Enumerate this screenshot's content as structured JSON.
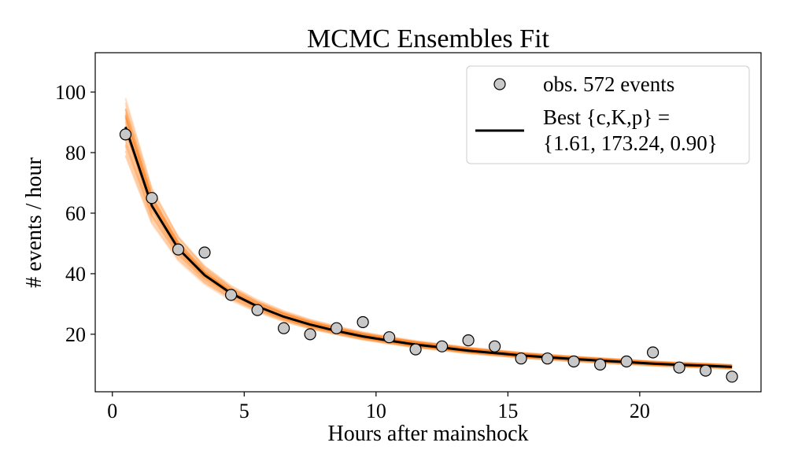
{
  "chart_data": {
    "type": "scatter",
    "title": "MCMC Ensembles Fit",
    "xlabel": "Hours after mainshock",
    "ylabel": "# events / hour",
    "xlim": [
      -0.65,
      24.6
    ],
    "ylim": [
      1,
      113
    ],
    "x_ticks": [
      0,
      5,
      10,
      15,
      20
    ],
    "y_ticks": [
      20,
      40,
      60,
      80,
      100
    ],
    "grid": false,
    "legend_position": "top-right",
    "legend": {
      "observed_label": "obs. 572 events",
      "best_label_line1": "Best {c,K,p} =",
      "best_label_line2": "{1.61, 173.24, 0.90}"
    },
    "best_fit_params": {
      "c": 1.61,
      "K": 173.24,
      "p": 0.9
    },
    "observed": {
      "name": "obs. 572 events",
      "x": [
        0.5,
        1.5,
        2.5,
        3.5,
        4.5,
        5.5,
        6.5,
        7.5,
        8.5,
        9.5,
        10.5,
        11.5,
        12.5,
        13.5,
        14.5,
        15.5,
        16.5,
        17.5,
        18.5,
        19.5,
        20.5,
        21.5,
        22.5,
        23.5
      ],
      "y": [
        86,
        65,
        48,
        47,
        33,
        28,
        22,
        20,
        22,
        24,
        19,
        15,
        16,
        18,
        16,
        12,
        12,
        11,
        10,
        11,
        14,
        9,
        8,
        6
      ],
      "color": "#c8c8c8"
    },
    "best_fit": {
      "name": "Best {c,K,p} =",
      "x": [
        0.5,
        1.5,
        2.5,
        3.5,
        4.5,
        5.5,
        6.5,
        7.5,
        8.5,
        9.5,
        10.5,
        11.5,
        12.5,
        13.5,
        14.5,
        15.5,
        16.5,
        17.5,
        18.5,
        19.5,
        20.5,
        21.5,
        22.5,
        23.5
      ],
      "y": [
        88.5,
        62.4,
        48.3,
        39.5,
        33.5,
        29.2,
        25.8,
        23.2,
        21.1,
        19.3,
        17.9,
        16.6,
        15.6,
        14.6,
        13.8,
        13.0,
        12.4,
        11.8,
        11.3,
        10.8,
        10.3,
        9.9,
        9.6,
        9.2
      ],
      "color": "#000000"
    },
    "ensemble": {
      "color": "#ff7f0e",
      "count": 60
    }
  }
}
